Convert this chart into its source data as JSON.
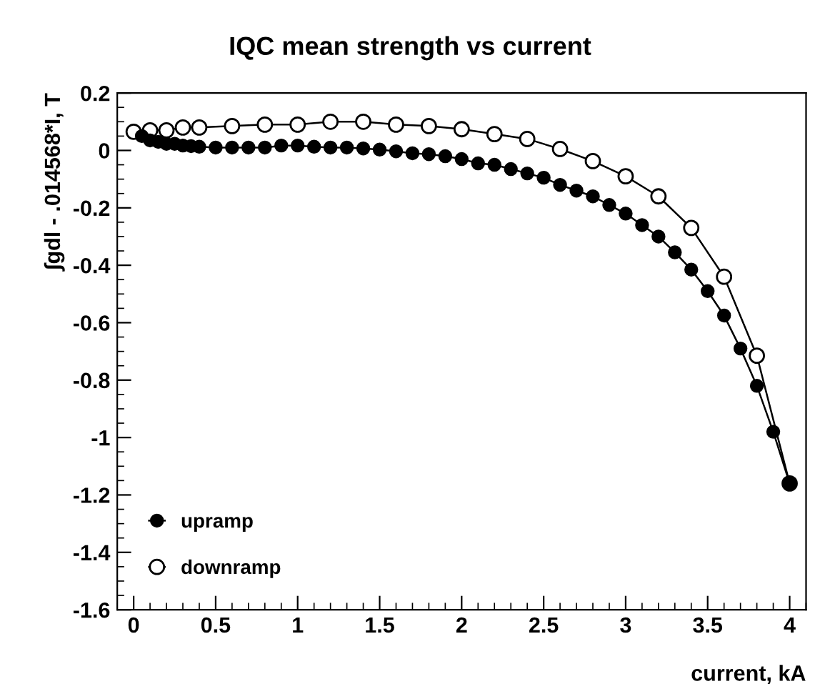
{
  "chart_data": {
    "type": "line",
    "title": "IQC mean strength vs current",
    "xlabel": "current, kA",
    "ylabel": "∫gdl - .014568*I, T",
    "xlim": [
      -0.1,
      4.1
    ],
    "ylim": [
      -1.6,
      0.2
    ],
    "xticks": [
      0,
      0.5,
      1,
      1.5,
      2,
      2.5,
      3,
      3.5,
      4
    ],
    "yticks": [
      0.2,
      0,
      -0.2,
      -0.4,
      -0.6,
      -0.8,
      -1,
      -1.2,
      -1.4,
      -1.6
    ],
    "grid": false,
    "legend": "bottom left",
    "marker": "circle",
    "line_style": "solid",
    "series": [
      {
        "name": "upramp",
        "color": "#000000",
        "x": [
          0.05,
          0.1,
          0.15,
          0.2,
          0.25,
          0.3,
          0.35,
          0.4,
          0.5,
          0.6,
          0.7,
          0.8,
          0.9,
          1.0,
          1.1,
          1.2,
          1.3,
          1.4,
          1.5,
          1.6,
          1.7,
          1.8,
          1.9,
          2.0,
          2.1,
          2.2,
          2.3,
          2.4,
          2.5,
          2.6,
          2.7,
          2.8,
          2.9,
          3.0,
          3.1,
          3.2,
          3.3,
          3.4,
          3.5,
          3.6,
          3.7,
          3.8,
          3.9,
          4.0
        ],
        "values": [
          0.05,
          0.035,
          0.03,
          0.023,
          0.023,
          0.017,
          0.015,
          0.013,
          0.01,
          0.01,
          0.01,
          0.01,
          0.017,
          0.017,
          0.013,
          0.01,
          0.01,
          0.007,
          0.003,
          -0.003,
          -0.01,
          -0.013,
          -0.02,
          -0.03,
          -0.045,
          -0.05,
          -0.065,
          -0.08,
          -0.095,
          -0.12,
          -0.14,
          -0.16,
          -0.19,
          -0.22,
          -0.26,
          -0.3,
          -0.355,
          -0.415,
          -0.49,
          -0.575,
          -0.69,
          -0.82,
          -0.98,
          -1.16
        ]
      },
      {
        "name": "downramp",
        "color": "#000000",
        "x": [
          0,
          0.1,
          0.2,
          0.3,
          0.4,
          0.6,
          0.8,
          1.0,
          1.2,
          1.4,
          1.6,
          1.8,
          2.0,
          2.2,
          2.4,
          2.6,
          2.8,
          3.0,
          3.2,
          3.4,
          3.6,
          3.8,
          4.0
        ],
        "values": [
          0.065,
          0.07,
          0.07,
          0.08,
          0.08,
          0.085,
          0.09,
          0.09,
          0.1,
          0.1,
          0.09,
          0.085,
          0.074,
          0.057,
          0.04,
          0.005,
          -0.037,
          -0.09,
          -0.16,
          -0.27,
          -0.44,
          -0.715,
          -1.16
        ]
      }
    ]
  }
}
